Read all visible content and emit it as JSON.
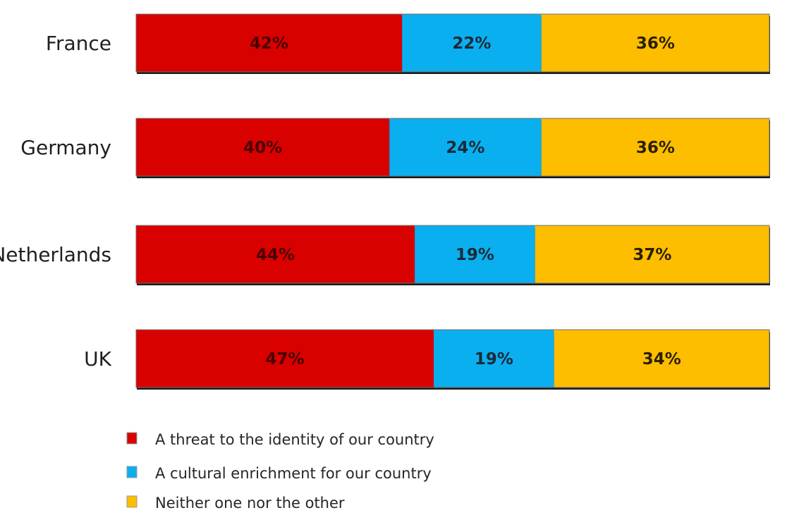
{
  "chart_data": {
    "type": "bar",
    "orientation": "horizontal",
    "stacked": true,
    "title": "",
    "xlabel": "",
    "ylabel": "",
    "xlim": [
      0,
      100
    ],
    "grid": false,
    "legend_position": "bottom-left",
    "categories": [
      "France",
      "Germany",
      "Netherlands",
      "UK"
    ],
    "series": [
      {
        "name": "A threat to the identity of our country",
        "color": "#d90000",
        "label_color": "#4a0000",
        "values": [
          42,
          40,
          44,
          47
        ]
      },
      {
        "name": "A cultural enrichment for our country",
        "color": "#0aaff0",
        "label_color": "#1a2a36",
        "values": [
          22,
          24,
          19,
          19
        ]
      },
      {
        "name": "Neither one nor the other",
        "color": "#fdbe00",
        "label_color": "#2b1f00",
        "values": [
          36,
          36,
          37,
          34
        ]
      }
    ],
    "value_labels": [
      [
        "42%",
        "22%",
        "36%"
      ],
      [
        "40%",
        "24%",
        "36%"
      ],
      [
        "44%",
        "19%",
        "37%"
      ],
      [
        "47%",
        "19%",
        "34%"
      ]
    ]
  }
}
